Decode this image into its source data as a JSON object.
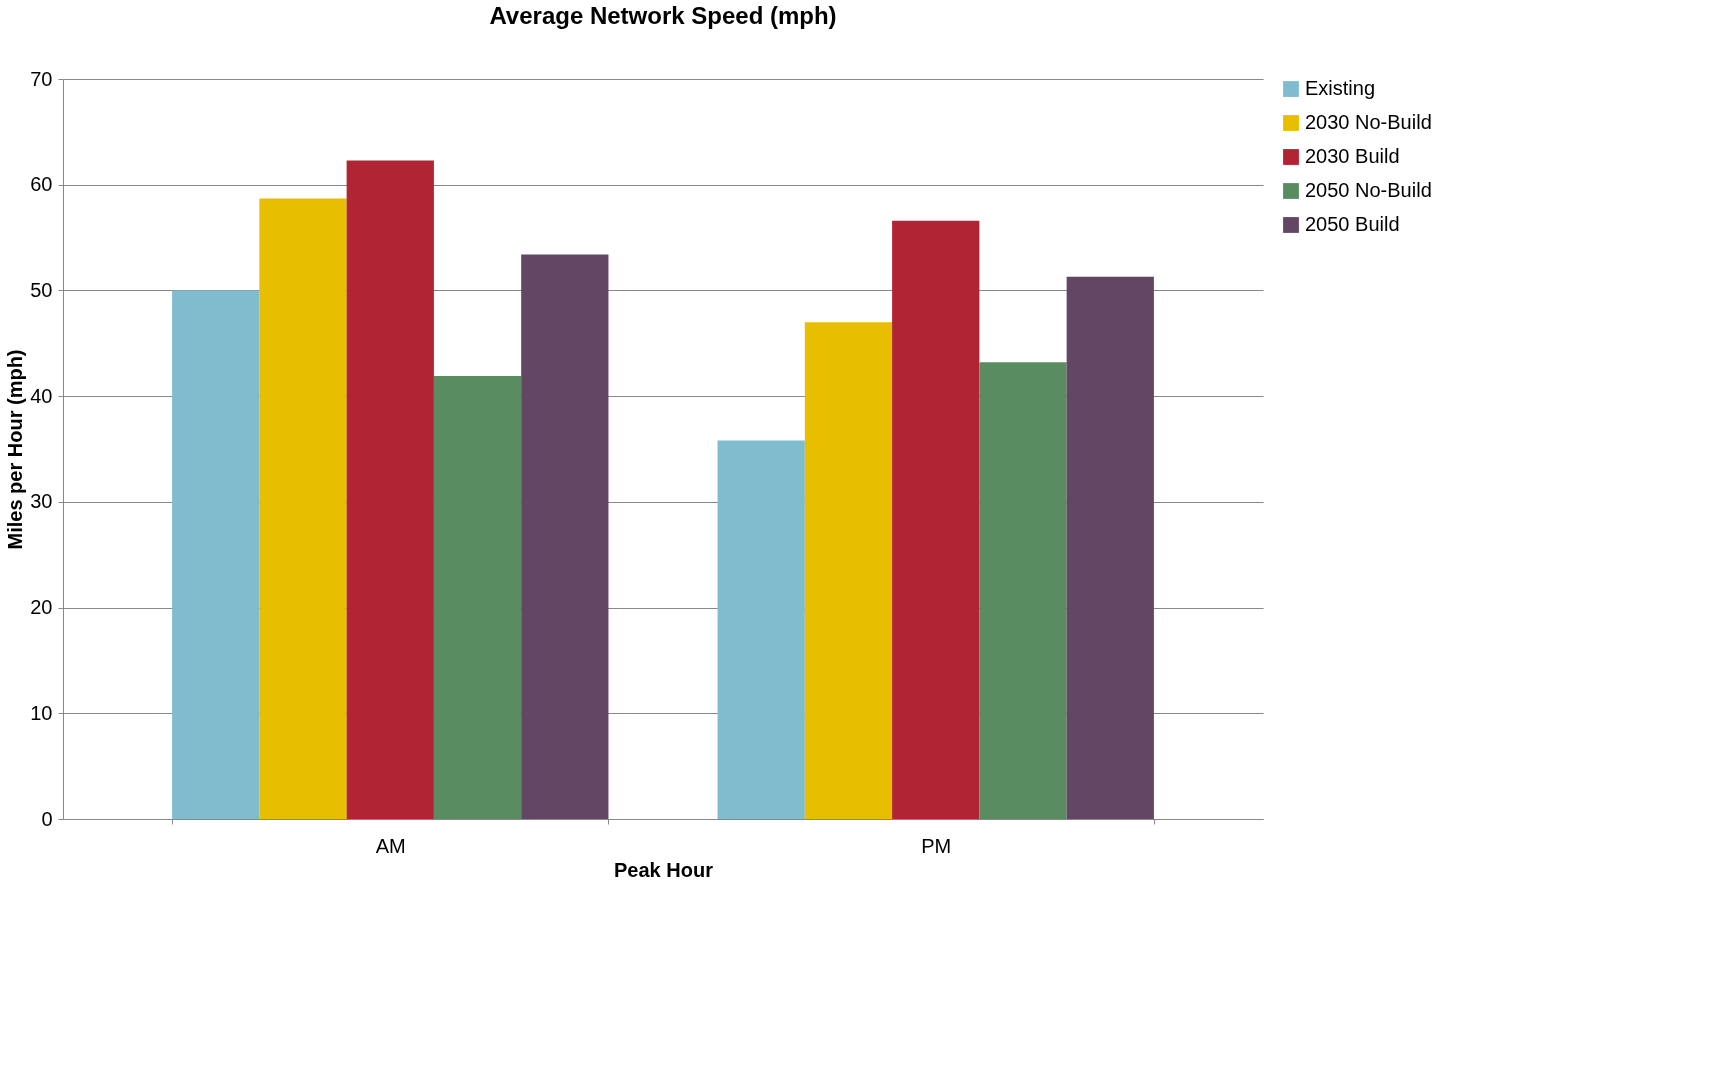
{
  "chart_data": {
    "type": "bar",
    "title": "Average Network Speed (mph)",
    "xlabel": "Peak Hour",
    "ylabel": "Miles per Hour (mph)",
    "categories": [
      "AM",
      "PM"
    ],
    "series": [
      {
        "name": "Existing",
        "color": "#7fbccd",
        "values": [
          50,
          35.8
        ]
      },
      {
        "name": "2030 No-Build",
        "color": "#e8be00",
        "values": [
          58.7,
          47
        ]
      },
      {
        "name": "2030 Build",
        "color": "#b02433",
        "values": [
          62.3,
          56.6
        ]
      },
      {
        "name": "2050 No-Build",
        "color": "#5a8c62",
        "values": [
          41.9,
          43.2
        ]
      },
      {
        "name": "2050 Build",
        "color": "#634663",
        "values": [
          53.4,
          51.3
        ]
      }
    ],
    "ylim": [
      0,
      70
    ],
    "yticks": [
      0,
      10,
      20,
      30,
      40,
      50,
      60,
      70
    ],
    "grid": "y",
    "legend": "right"
  }
}
